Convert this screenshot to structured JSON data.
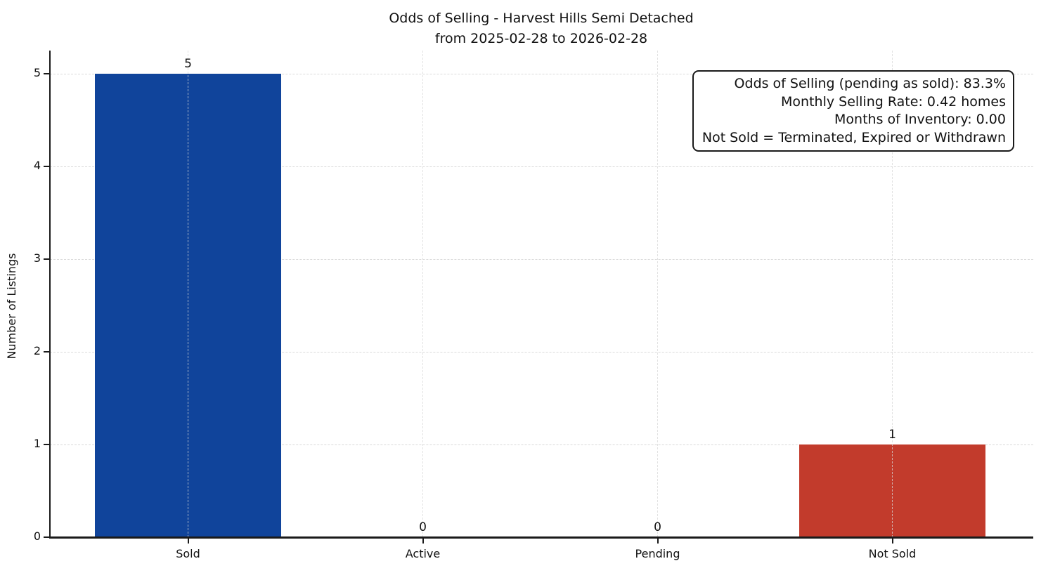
{
  "title": {
    "line1": "Odds of Selling - Harvest Hills Semi Detached",
    "line2": "from 2025-02-28 to 2026-02-28"
  },
  "chart_data": {
    "type": "bar",
    "categories": [
      "Sold",
      "Active",
      "Pending",
      "Not Sold"
    ],
    "values": [
      5,
      0,
      0,
      1
    ],
    "bar_colors": [
      "#10449b",
      "",
      "",
      "#c23b2c"
    ],
    "title": "Odds of Selling - Harvest Hills Semi Detached from 2025-02-28 to 2026-02-28",
    "xlabel": "",
    "ylabel": "Number of Listings",
    "ylim": [
      0,
      5.25
    ],
    "yticks": [
      0,
      1,
      2,
      3,
      4,
      5
    ],
    "grid": "both-dashed",
    "legend": "none"
  },
  "annotation": {
    "lines": [
      "Odds of Selling (pending as sold): 83.3%",
      "Monthly Selling Rate: 0.42 homes",
      "Months of Inventory: 0.00",
      "Not Sold = Terminated, Expired or Withdrawn"
    ]
  },
  "colors": {
    "sold_bar": "#10449b",
    "not_sold_bar": "#c23b2c",
    "axis": "#1a1a1a",
    "grid": "#d9d9d9",
    "background": "#ffffff"
  }
}
